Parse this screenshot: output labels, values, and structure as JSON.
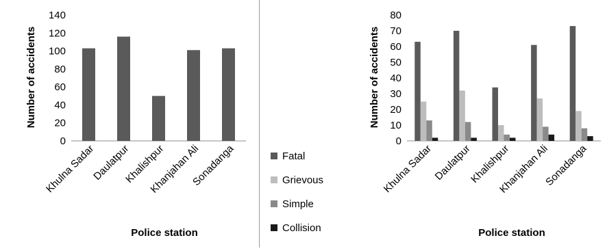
{
  "chart_data": [
    {
      "type": "bar",
      "categories": [
        "Khulna Sadar",
        "Daulatpur",
        "Khalishpur",
        "Khanjahan Ali",
        "Sonadanga"
      ],
      "values": [
        103,
        116,
        50,
        101,
        103
      ],
      "xlabel": "Police station",
      "ylabel": "Number of accidents",
      "ylim": [
        0,
        140
      ],
      "yticks": [
        0,
        20,
        40,
        60,
        80,
        100,
        120,
        140
      ],
      "grid": false,
      "colors": [
        "#5a5a5a"
      ]
    },
    {
      "type": "bar",
      "categories": [
        "Khulna Sadar",
        "Daulatpur",
        "Khalishpur",
        "Khanjahan Ali",
        "Sonadanga"
      ],
      "series": [
        {
          "name": "Fatal",
          "values": [
            63,
            70,
            34,
            61,
            73
          ],
          "color": "#5a5a5a"
        },
        {
          "name": "Grievous",
          "values": [
            25,
            32,
            10,
            27,
            19
          ],
          "color": "#bdbdbd"
        },
        {
          "name": "Simple",
          "values": [
            13,
            12,
            4,
            9,
            8
          ],
          "color": "#8a8a8a"
        },
        {
          "name": "Collision",
          "values": [
            2,
            2,
            2,
            4,
            3
          ],
          "color": "#1a1a1a"
        }
      ],
      "xlabel": "Police station",
      "ylabel": "Number of accidents",
      "ylim": [
        0,
        80
      ],
      "yticks": [
        0,
        10,
        20,
        30,
        40,
        50,
        60,
        70,
        80
      ],
      "grid": false,
      "legend_position": "left"
    }
  ]
}
